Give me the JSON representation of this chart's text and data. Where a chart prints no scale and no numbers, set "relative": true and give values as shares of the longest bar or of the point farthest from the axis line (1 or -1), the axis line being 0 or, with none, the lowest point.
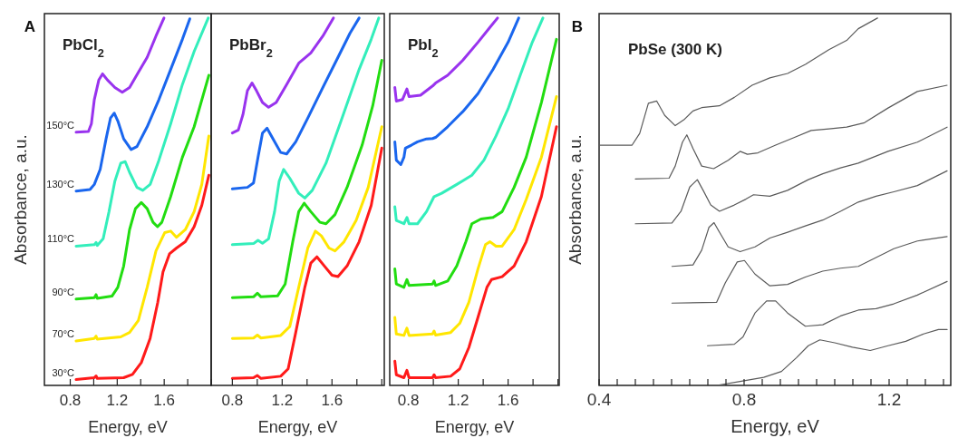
{
  "chart_data": [
    {
      "type": "line",
      "title": "PbCl$_{2}$",
      "xlabel": "Energy, eV",
      "ylabel": "Absorbance, a.u.",
      "annotations": [
        "A"
      ],
      "relative": true,
      "tick_labels": "x",
      "xlim": [
        0.58,
        2.0
      ],
      "xticks": [
        0.8,
        {
          "value": 1.0,
          "label": null
        },
        1.2,
        {
          "value": 1.4,
          "label": null
        },
        1.6,
        {
          "value": 1.8,
          "label": null
        },
        {
          "value": 2.0,
          "label": null
        }
      ],
      "series": [
        {
          "name": "30°C",
          "color": "#ff1a1a",
          "x": [
            0.85,
            1.005,
            1.02,
            1.03,
            1.255,
            1.33,
            1.405,
            1.48,
            1.545,
            1.59,
            1.645,
            1.705,
            1.78,
            1.855,
            1.92,
            1.98
          ],
          "values": [
            0.016,
            0.021,
            0.026,
            0.019,
            0.021,
            0.03,
            0.062,
            0.128,
            0.226,
            0.309,
            0.358,
            0.374,
            0.391,
            0.432,
            0.49,
            0.572
          ]
        },
        {
          "name": "70°C",
          "color": "#ffe600",
          "x": [
            0.85,
            1.005,
            1.02,
            1.03,
            1.23,
            1.305,
            1.38,
            1.455,
            1.53,
            1.605,
            1.655,
            1.705,
            1.78,
            1.855,
            1.92,
            1.98
          ],
          "values": [
            0.121,
            0.128,
            0.134,
            0.126,
            0.132,
            0.144,
            0.177,
            0.267,
            0.366,
            0.416,
            0.42,
            0.403,
            0.424,
            0.473,
            0.547,
            0.679
          ]
        },
        {
          "name": "90°C",
          "color": "#22dd11",
          "x": [
            0.85,
            1.005,
            1.02,
            1.03,
            1.155,
            1.205,
            1.255,
            1.305,
            1.355,
            1.405,
            1.455,
            1.505,
            1.543,
            1.58,
            1.655,
            1.755,
            1.855,
            1.98
          ],
          "values": [
            0.235,
            0.239,
            0.247,
            0.237,
            0.243,
            0.267,
            0.325,
            0.424,
            0.481,
            0.498,
            0.481,
            0.444,
            0.432,
            0.444,
            0.514,
            0.621,
            0.704,
            0.844
          ]
        },
        {
          "name": "110°C",
          "color": "#33eebb",
          "x": [
            0.85,
            1.005,
            1.02,
            1.03,
            1.08,
            1.13,
            1.18,
            1.23,
            1.268,
            1.305,
            1.368,
            1.418,
            1.48,
            1.555,
            1.655,
            1.755,
            1.855,
            1.975
          ],
          "values": [
            0.379,
            0.383,
            0.389,
            0.381,
            0.399,
            0.473,
            0.556,
            0.605,
            0.609,
            0.58,
            0.539,
            0.531,
            0.547,
            0.613,
            0.712,
            0.819,
            0.909,
            1.0
          ]
        },
        {
          "name": "130°C",
          "color": "#1a66ee",
          "x": [
            0.85,
            0.968,
            1.005,
            1.055,
            1.105,
            1.143,
            1.175,
            1.205,
            1.255,
            1.318,
            1.368,
            1.455,
            1.555,
            1.655,
            1.755,
            1.818
          ],
          "values": [
            0.529,
            0.533,
            0.547,
            0.588,
            0.671,
            0.728,
            0.741,
            0.72,
            0.671,
            0.642,
            0.65,
            0.704,
            0.778,
            0.86,
            0.942,
            0.998
          ]
        },
        {
          "name": "150°C",
          "color": "#9933ee",
          "x": [
            0.85,
            0.955,
            0.98,
            1.005,
            1.043,
            1.075,
            1.118,
            1.18,
            1.243,
            1.305,
            1.38,
            1.455,
            1.53,
            1.598
          ],
          "values": [
            0.689,
            0.691,
            0.712,
            0.778,
            0.831,
            0.848,
            0.831,
            0.811,
            0.798,
            0.811,
            0.852,
            0.893,
            0.951,
            1.0
          ]
        }
      ]
    },
    {
      "type": "line",
      "title": "PbBr$_{2}$",
      "xlabel": "Energy, eV",
      "relative": true,
      "tick_labels": "x",
      "xlim": [
        0.63,
        2.02
      ],
      "xticks": [
        0.8,
        {
          "value": 1.0,
          "label": null
        },
        1.2,
        {
          "value": 1.4,
          "label": null
        },
        1.6,
        {
          "value": 1.8,
          "label": null
        },
        {
          "value": 2.0,
          "label": null
        }
      ],
      "series": [
        {
          "color": "#ff1a1a",
          "x": [
            0.8,
            0.97,
            1.001,
            1.03,
            1.188,
            1.248,
            1.309,
            1.382,
            1.43,
            1.479,
            1.539,
            1.6,
            1.648,
            1.721,
            1.818,
            1.915,
            2.0
          ],
          "values": [
            0.019,
            0.021,
            0.027,
            0.019,
            0.025,
            0.045,
            0.144,
            0.267,
            0.333,
            0.35,
            0.325,
            0.3,
            0.296,
            0.325,
            0.391,
            0.49,
            0.646
          ]
        },
        {
          "color": "#ffe600",
          "x": [
            0.8,
            0.97,
            1.001,
            1.03,
            1.188,
            1.261,
            1.333,
            1.406,
            1.467,
            1.515,
            1.576,
            1.624,
            1.697,
            1.794,
            1.891,
            2.0
          ],
          "values": [
            0.128,
            0.129,
            0.137,
            0.129,
            0.136,
            0.16,
            0.267,
            0.374,
            0.42,
            0.407,
            0.374,
            0.366,
            0.391,
            0.449,
            0.539,
            0.704
          ]
        },
        {
          "color": "#22dd11",
          "x": [
            0.8,
            0.97,
            1.001,
            1.03,
            1.164,
            1.224,
            1.285,
            1.333,
            1.377,
            1.43,
            1.503,
            1.552,
            1.624,
            1.721,
            1.842,
            1.927,
            2.0
          ],
          "values": [
            0.239,
            0.241,
            0.251,
            0.241,
            0.244,
            0.276,
            0.391,
            0.473,
            0.496,
            0.473,
            0.444,
            0.44,
            0.465,
            0.539,
            0.654,
            0.761,
            0.885
          ]
        },
        {
          "color": "#33eebb",
          "x": [
            0.8,
            0.97,
            1.006,
            1.042,
            1.091,
            1.139,
            1.176,
            1.212,
            1.261,
            1.333,
            1.382,
            1.442,
            1.552,
            1.673,
            1.818,
            1.915,
            1.976
          ],
          "values": [
            0.383,
            0.386,
            0.395,
            0.387,
            0.399,
            0.473,
            0.556,
            0.588,
            0.564,
            0.523,
            0.51,
            0.531,
            0.605,
            0.72,
            0.86,
            0.942,
            1.0
          ]
        },
        {
          "color": "#1a66ee",
          "x": [
            0.8,
            0.921,
            0.97,
            1.006,
            1.042,
            1.079,
            1.127,
            1.188,
            1.236,
            1.309,
            1.406,
            1.527,
            1.648,
            1.745,
            1.818
          ],
          "values": [
            0.535,
            0.539,
            0.551,
            0.621,
            0.687,
            0.7,
            0.671,
            0.634,
            0.63,
            0.663,
            0.728,
            0.811,
            0.893,
            0.959,
            1.0
          ]
        },
        {
          "color": "#9933ee",
          "x": [
            0.8,
            0.848,
            0.885,
            0.921,
            0.958,
            0.994,
            1.042,
            1.091,
            1.152,
            1.236,
            1.333,
            1.43,
            1.527,
            1.612
          ],
          "values": [
            0.687,
            0.695,
            0.737,
            0.802,
            0.823,
            0.802,
            0.77,
            0.757,
            0.77,
            0.819,
            0.877,
            0.905,
            0.951,
            1.0
          ]
        }
      ]
    },
    {
      "type": "line",
      "title": "PbI$_{2}$",
      "xlabel": "Energy, eV",
      "relative": true,
      "tick_labels": "x",
      "xlim": [
        0.65,
        2.01
      ],
      "xticks": [
        0.8,
        {
          "value": 1.0,
          "label": null
        },
        1.2,
        {
          "value": 1.4,
          "label": null
        },
        1.6,
        {
          "value": 1.8,
          "label": null
        },
        {
          "value": 2.0,
          "label": null
        }
      ],
      "series": [
        {
          "color": "#ff1a1a",
          "x": [
            0.691,
            0.703,
            0.764,
            0.788,
            0.805,
            0.994,
            1.006,
            1.018,
            1.139,
            1.212,
            1.285,
            1.358,
            1.43,
            1.467,
            1.552,
            1.648,
            1.745,
            1.867,
            1.988
          ],
          "values": [
            0.066,
            0.029,
            0.021,
            0.041,
            0.021,
            0.021,
            0.029,
            0.021,
            0.025,
            0.045,
            0.103,
            0.185,
            0.267,
            0.288,
            0.296,
            0.325,
            0.391,
            0.514,
            0.704
          ]
        },
        {
          "color": "#ffe600",
          "x": [
            0.691,
            0.703,
            0.764,
            0.788,
            0.805,
            0.994,
            1.006,
            1.018,
            1.139,
            1.212,
            1.285,
            1.358,
            1.418,
            1.455,
            1.503,
            1.552,
            1.648,
            1.745,
            1.867,
            1.988
          ],
          "values": [
            0.185,
            0.14,
            0.136,
            0.156,
            0.136,
            0.14,
            0.148,
            0.137,
            0.144,
            0.169,
            0.226,
            0.317,
            0.383,
            0.391,
            0.379,
            0.379,
            0.424,
            0.506,
            0.621,
            0.786
          ]
        },
        {
          "color": "#22dd11",
          "x": [
            0.691,
            0.703,
            0.764,
            0.788,
            0.805,
            0.994,
            1.006,
            1.018,
            1.115,
            1.188,
            1.261,
            1.309,
            1.382,
            1.479,
            1.552,
            1.648,
            1.745,
            1.867,
            1.988
          ],
          "values": [
            0.317,
            0.276,
            0.267,
            0.288,
            0.272,
            0.276,
            0.284,
            0.272,
            0.284,
            0.325,
            0.391,
            0.44,
            0.453,
            0.457,
            0.473,
            0.539,
            0.621,
            0.77,
            0.942
          ]
        },
        {
          "color": "#33eebb",
          "x": [
            0.691,
            0.703,
            0.764,
            0.788,
            0.805,
            0.873,
            0.945,
            0.994,
            1.006,
            1.067,
            1.188,
            1.309,
            1.406,
            1.503,
            1.6,
            1.697,
            1.794,
            1.879
          ],
          "values": [
            0.486,
            0.449,
            0.44,
            0.457,
            0.44,
            0.44,
            0.473,
            0.506,
            0.514,
            0.523,
            0.547,
            0.572,
            0.613,
            0.679,
            0.753,
            0.844,
            0.934,
            1.0
          ]
        },
        {
          "color": "#1a66ee",
          "x": [
            0.691,
            0.703,
            0.739,
            0.764,
            0.776,
            0.824,
            0.873,
            0.945,
            0.994,
            1.018,
            1.115,
            1.236,
            1.358,
            1.479,
            1.6,
            1.685
          ],
          "values": [
            0.663,
            0.613,
            0.601,
            0.621,
            0.646,
            0.654,
            0.663,
            0.671,
            0.672,
            0.675,
            0.704,
            0.745,
            0.794,
            0.86,
            0.934,
            1.0
          ]
        },
        {
          "color": "#9933ee",
          "x": [
            0.691,
            0.703,
            0.752,
            0.788,
            0.805,
            0.897,
            0.994,
            1.018,
            1.115,
            1.236,
            1.358,
            1.455,
            1.515
          ],
          "values": [
            0.811,
            0.774,
            0.778,
            0.807,
            0.786,
            0.79,
            0.815,
            0.823,
            0.844,
            0.885,
            0.934,
            0.975,
            1.0
          ]
        }
      ]
    },
    {
      "type": "line",
      "title": "PbSe (300 K)",
      "xlabel": "Energy, eV",
      "ylabel": "Absorbance, a.u.",
      "annotations": [
        "B"
      ],
      "relative": true,
      "tick_labels": "x",
      "xlim": [
        0.4,
        1.37
      ],
      "xticks": [
        0.4,
        {
          "value": 0.45,
          "label": null
        },
        {
          "value": 0.5,
          "label": null
        },
        {
          "value": 0.55,
          "label": null
        },
        {
          "value": 0.6,
          "label": null
        },
        {
          "value": 0.65,
          "label": null
        },
        {
          "value": 0.7,
          "label": null
        },
        {
          "value": 0.75,
          "label": null
        },
        0.8,
        {
          "value": 0.85,
          "label": null
        },
        {
          "value": 0.9,
          "label": null
        },
        {
          "value": 0.95,
          "label": null
        },
        {
          "value": 1.0,
          "label": null
        },
        {
          "value": 1.05,
          "label": null
        },
        {
          "value": 1.1,
          "label": null
        },
        {
          "value": 1.15,
          "label": null
        },
        1.2,
        {
          "value": 1.25,
          "label": null
        },
        {
          "value": 1.3,
          "label": null
        },
        {
          "value": 1.35,
          "label": null
        }
      ],
      "series": [
        {
          "color": "#5a5a5a",
          "x": [
            0.402,
            0.491,
            0.512,
            0.536,
            0.559,
            0.581,
            0.61,
            0.634,
            0.659,
            0.683,
            0.732,
            0.773,
            0.822,
            0.871,
            0.92,
            0.969,
            1.034,
            1.083,
            1.115,
            1.168
          ],
          "values": [
            0.654,
            0.654,
            0.686,
            0.768,
            0.774,
            0.735,
            0.707,
            0.723,
            0.747,
            0.756,
            0.761,
            0.784,
            0.817,
            0.837,
            0.849,
            0.874,
            0.914,
            0.939,
            0.971,
            1.0
          ]
        },
        {
          "color": "#5a5a5a",
          "x": [
            0.5,
            0.593,
            0.61,
            0.63,
            0.642,
            0.659,
            0.683,
            0.716,
            0.756,
            0.789,
            0.809,
            0.838,
            0.887,
            0.936,
            0.985,
            1.034,
            1.083,
            1.132,
            1.197,
            1.278,
            1.36
          ],
          "values": [
            0.562,
            0.564,
            0.597,
            0.662,
            0.682,
            0.645,
            0.597,
            0.59,
            0.613,
            0.637,
            0.629,
            0.633,
            0.654,
            0.674,
            0.694,
            0.698,
            0.703,
            0.715,
            0.755,
            0.8,
            0.817
          ]
        },
        {
          "color": "#5a5a5a",
          "x": [
            0.5,
            0.601,
            0.626,
            0.65,
            0.671,
            0.687,
            0.708,
            0.732,
            0.773,
            0.805,
            0.826,
            0.871,
            0.92,
            0.977,
            1.017,
            1.066,
            1.115,
            1.197,
            1.278,
            1.36
          ],
          "values": [
            0.44,
            0.442,
            0.474,
            0.54,
            0.56,
            0.531,
            0.491,
            0.474,
            0.491,
            0.507,
            0.519,
            0.515,
            0.531,
            0.56,
            0.576,
            0.592,
            0.605,
            0.637,
            0.662,
            0.703
          ]
        },
        {
          "color": "#5a5a5a",
          "x": [
            0.601,
            0.659,
            0.683,
            0.703,
            0.717,
            0.732,
            0.756,
            0.789,
            0.83,
            0.871,
            0.92,
            0.969,
            1.017,
            1.066,
            1.115,
            1.164,
            1.213,
            1.278,
            1.36
          ],
          "values": [
            0.324,
            0.328,
            0.368,
            0.43,
            0.443,
            0.417,
            0.377,
            0.364,
            0.377,
            0.401,
            0.417,
            0.434,
            0.45,
            0.474,
            0.499,
            0.515,
            0.527,
            0.544,
            0.584
          ]
        },
        {
          "color": "#5a5a5a",
          "x": [
            0.601,
            0.724,
            0.748,
            0.781,
            0.801,
            0.83,
            0.871,
            0.92,
            0.969,
            1.017,
            1.066,
            1.115,
            1.164,
            1.213,
            1.278,
            1.36
          ],
          "values": [
            0.224,
            0.226,
            0.279,
            0.336,
            0.34,
            0.303,
            0.271,
            0.275,
            0.295,
            0.311,
            0.319,
            0.324,
            0.348,
            0.372,
            0.393,
            0.405
          ]
        },
        {
          "color": "#5a5a5a",
          "x": [
            0.699,
            0.773,
            0.797,
            0.83,
            0.862,
            0.887,
            0.92,
            0.969,
            1.017,
            1.066,
            1.115,
            1.164,
            1.213,
            1.278,
            1.36
          ],
          "values": [
            0.108,
            0.112,
            0.132,
            0.197,
            0.23,
            0.23,
            0.197,
            0.161,
            0.165,
            0.189,
            0.205,
            0.209,
            0.222,
            0.246,
            0.283
          ]
        },
        {
          "color": "#5a5a5a",
          "x": [
            0.724,
            0.789,
            0.854,
            0.903,
            0.944,
            0.977,
            1.009,
            1.05,
            1.099,
            1.148,
            1.197,
            1.246,
            1.295,
            1.336,
            1.36
          ],
          "values": [
            0.0,
            0.011,
            0.022,
            0.038,
            0.075,
            0.108,
            0.124,
            0.116,
            0.104,
            0.095,
            0.108,
            0.12,
            0.14,
            0.152,
            0.152
          ]
        }
      ]
    }
  ]
}
